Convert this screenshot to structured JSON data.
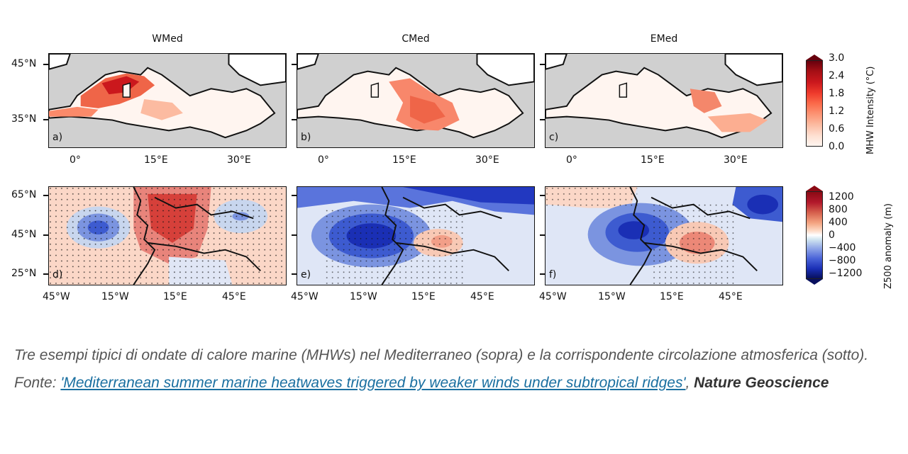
{
  "titles": [
    "WMed",
    "CMed",
    "EMed"
  ],
  "top_row": {
    "lat_ticks": [
      "45°N",
      "35°N"
    ],
    "lon_ticks": [
      "0°",
      "15°E",
      "30°E"
    ],
    "panels": [
      {
        "label": "a)",
        "hotspot": "western basin"
      },
      {
        "label": "b)",
        "hotspot": "central basin"
      },
      {
        "label": "c)",
        "hotspot": "eastern basin"
      }
    ],
    "colorbar": {
      "title": "MHW Intensity (°C)",
      "ticks": [
        "3.0",
        "2.4",
        "1.8",
        "1.2",
        "0.6",
        "0.0"
      ],
      "colors": [
        "#67000d",
        "#a50f15",
        "#cb181d",
        "#ef3b2c",
        "#fb6a4a",
        "#fc9272",
        "#fcbba1",
        "#fee0d2",
        "#fff5f0"
      ]
    }
  },
  "bottom_row": {
    "lat_ticks": [
      "65°N",
      "45°N",
      "25°N"
    ],
    "lon_ticks": [
      "45°W",
      "15°W",
      "15°E",
      "45°E"
    ],
    "panels": [
      {
        "label": "d)",
        "pattern": "ridge over central Europe"
      },
      {
        "label": "e)",
        "pattern": "trough west of Iberia"
      },
      {
        "label": "f)",
        "pattern": "trough west, ridge over Balkans"
      }
    ],
    "colorbar": {
      "title": "Z500 anomaly (m)",
      "ticks": [
        "1200",
        "800",
        "400",
        "0",
        "−400",
        "−800",
        "−1200"
      ],
      "colors": [
        "#67000d",
        "#b2182b",
        "#d6604d",
        "#f4a582",
        "#fddbc7",
        "#ffffff",
        "#d1e5f0",
        "#92a8e8",
        "#4a64d8",
        "#1a2fb5",
        "#08105e"
      ]
    }
  },
  "caption": {
    "text": "Tre esempi tipici di ondate di calore marine (MHWs) nel Mediterraneo (sopra) e la corrispondente circolazione atmosferica (sotto). Fonte: ",
    "link_text": "'Mediterranean summer marine heatwaves triggered by weaker winds under subtropical ridges'",
    "separator": ",",
    "journal": "Nature Geoscience"
  }
}
